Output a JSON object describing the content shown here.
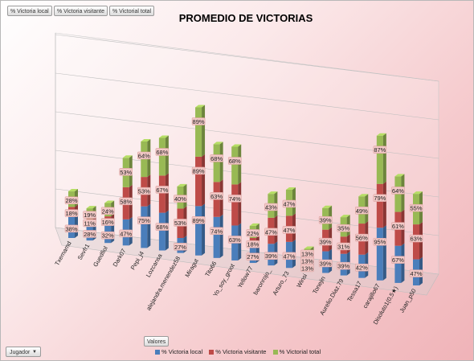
{
  "field_buttons": [
    "% Victoria local",
    "% Victoria visitante",
    "% Victorial total"
  ],
  "values_button": "Valores",
  "row_field": {
    "label": "Jugador",
    "arrow": "▼"
  },
  "colors": {
    "local": "#4a7ebb",
    "visitante": "#be4b48",
    "total": "#98b954"
  },
  "chart_data": {
    "type": "bar",
    "stacked": true,
    "three_d": true,
    "title": "PROMEDIO DE VICTORIAS",
    "legend_position": "bottom",
    "grid": true,
    "categories": [
      "Txemamd",
      "Sevfr1",
      "Guedfiol",
      "Dark07",
      "Pepi_j4",
      "Lozcansa",
      "alejandra.menendez58",
      "Miragut",
      "Tito66",
      "Yo_soy_groot",
      "Yellow77",
      "baronrojo_",
      "Arturo_73",
      "Winsi",
      "Tonejin",
      "Aurelio.Diaz.79",
      "Tessa17",
      "carajillo67",
      "Disoluto1(0,5★)",
      "Juan_p50"
    ],
    "series": [
      {
        "name": "% Victoria local",
        "values": [
          38,
          28,
          32,
          47,
          75,
          68,
          27,
          89,
          74,
          63,
          27,
          39,
          47,
          13,
          39,
          39,
          42,
          95,
          67,
          47
        ]
      },
      {
        "name": "% Victoria visitante",
        "values": [
          18,
          11,
          16,
          58,
          53,
          67,
          53,
          89,
          63,
          74,
          18,
          47,
          47,
          13,
          39,
          31,
          56,
          79,
          61,
          63
        ]
      },
      {
        "name": "% Victorial total",
        "values": [
          28,
          19,
          24,
          53,
          64,
          68,
          40,
          89,
          68,
          68,
          22,
          43,
          47,
          13,
          39,
          35,
          49,
          87,
          64,
          55
        ]
      }
    ],
    "data_labels": [
      [
        "38%",
        "28%",
        "32%",
        "47%",
        "75%",
        "68%",
        "27%",
        "89%",
        "74%",
        "63%",
        "27%",
        "39%",
        "47%",
        "13%",
        "39%",
        "39%",
        "42%",
        "95%",
        "67%",
        "47%"
      ],
      [
        "18%",
        "11%",
        "16%",
        "58%",
        "53%",
        "67%",
        "53%",
        "89%",
        "63%",
        "74%",
        "18%",
        "47%",
        "47%",
        "13%",
        "39%",
        "31%",
        "56%",
        "79%",
        "61%",
        "63%"
      ],
      [
        "28%",
        "19%",
        "24%",
        "53%",
        "64%",
        "68%",
        "40%",
        "89%",
        "68%",
        "68%",
        "22%",
        "43%",
        "47%",
        "13%",
        "39%",
        "35%",
        "49%",
        "87%",
        "64%",
        "55%"
      ]
    ]
  }
}
